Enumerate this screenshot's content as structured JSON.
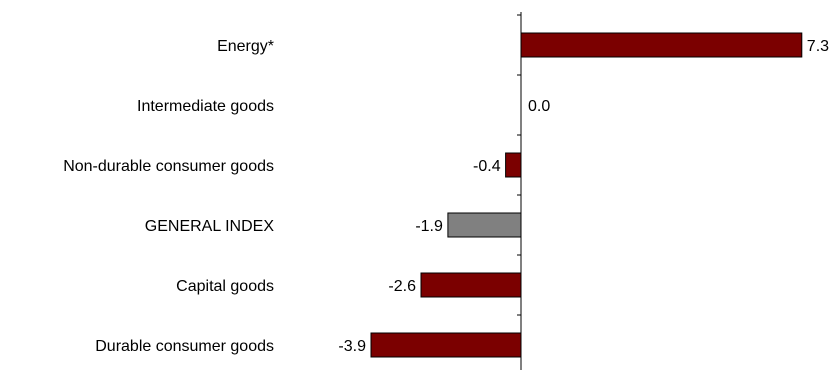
{
  "chart_data": {
    "type": "bar",
    "orientation": "horizontal",
    "categories": [
      "Energy*",
      "Intermediate goods",
      "Non-durable consumer goods",
      "GENERAL INDEX",
      "Capital goods",
      "Durable consumer goods"
    ],
    "values": [
      7.3,
      0.0,
      -0.4,
      -1.9,
      -2.6,
      -3.9
    ],
    "value_labels": [
      "7.3",
      "0.0",
      "-0.4",
      "-1.9",
      "-2.6",
      "-3.9"
    ],
    "bar_colors": [
      "#7b0000",
      "#7b0000",
      "#7b0000",
      "#808080",
      "#7b0000",
      "#7b0000"
    ],
    "xlim": [
      -5.0,
      7.3
    ],
    "title": "",
    "xlabel": "",
    "ylabel": "",
    "grid": false,
    "legend": "none"
  }
}
